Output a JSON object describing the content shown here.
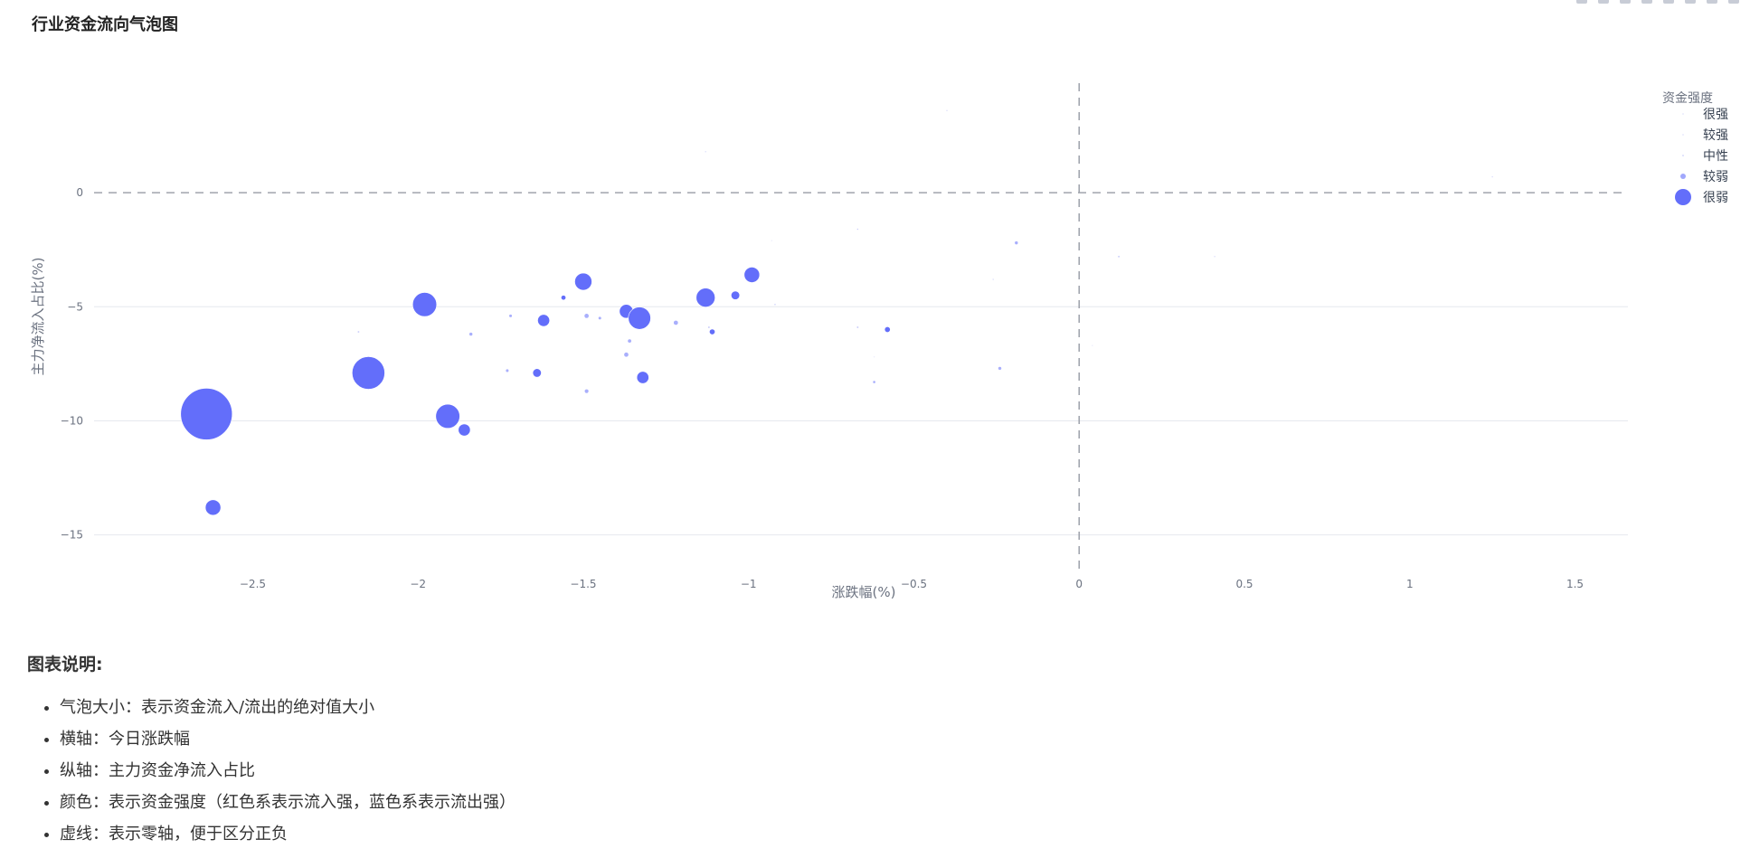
{
  "page": {
    "title": "行业资金流向气泡图"
  },
  "chart_data": {
    "type": "scatter",
    "title": "行业资金流向气泡图",
    "xlabel": "涨跌幅(%)",
    "ylabel": "主力净流入占比(%)",
    "xlim": [
      -2.98,
      1.66
    ],
    "ylim": [
      -16.6,
      4.8
    ],
    "xticks": [
      -2.5,
      -2,
      -1.5,
      -1,
      -0.5,
      0,
      0.5,
      1,
      1.5
    ],
    "xtick_labels": [
      "−2.5",
      "−2",
      "−1.5",
      "−1",
      "−0.5",
      "0",
      "0.5",
      "1",
      "1.5"
    ],
    "yticks": [
      0,
      -5,
      -10,
      -15
    ],
    "ytick_labels": [
      "0",
      "−5",
      "−10",
      "−15"
    ],
    "grid": true,
    "zero_lines": "dashed",
    "legend": {
      "title": "资金强度",
      "position": "top-right",
      "items": [
        "很强",
        "较强",
        "中性",
        "较弱",
        "很弱"
      ]
    },
    "series": [
      {
        "name": "很弱",
        "color": "#636efa",
        "opacity": 1.0,
        "points": [
          {
            "x": -2.64,
            "y": -9.7,
            "size": 30
          },
          {
            "x": -2.15,
            "y": -7.9,
            "size": 19
          },
          {
            "x": -1.98,
            "y": -4.9,
            "size": 14
          },
          {
            "x": -1.91,
            "y": -9.8,
            "size": 14
          },
          {
            "x": -1.86,
            "y": -10.4,
            "size": 7
          },
          {
            "x": -2.62,
            "y": -13.8,
            "size": 9
          },
          {
            "x": -1.62,
            "y": -5.6,
            "size": 7
          },
          {
            "x": -1.64,
            "y": -7.9,
            "size": 5
          },
          {
            "x": -1.5,
            "y": -3.9,
            "size": 10
          },
          {
            "x": -1.37,
            "y": -5.2,
            "size": 8
          },
          {
            "x": -1.33,
            "y": -5.5,
            "size": 13
          },
          {
            "x": -1.32,
            "y": -8.1,
            "size": 7
          },
          {
            "x": -1.13,
            "y": -4.6,
            "size": 11
          },
          {
            "x": -0.99,
            "y": -3.6,
            "size": 9
          },
          {
            "x": -1.04,
            "y": -4.5,
            "size": 5
          },
          {
            "x": -1.11,
            "y": -6.1,
            "size": 3
          },
          {
            "x": -0.58,
            "y": -6.0,
            "size": 3
          },
          {
            "x": -1.56,
            "y": -4.6,
            "size": 2.5
          }
        ]
      },
      {
        "name": "较弱",
        "color": "#636efa",
        "opacity": 0.55,
        "points": [
          {
            "x": -1.49,
            "y": -5.4,
            "size": 2.5
          },
          {
            "x": -1.22,
            "y": -5.7,
            "size": 2.5
          },
          {
            "x": -1.37,
            "y": -7.1,
            "size": 2.5
          },
          {
            "x": -1.49,
            "y": -8.7,
            "size": 2.2
          },
          {
            "x": -1.36,
            "y": -6.5,
            "size": 2
          },
          {
            "x": -1.84,
            "y": -6.2,
            "size": 1.8
          },
          {
            "x": -1.73,
            "y": -7.8,
            "size": 1.6
          },
          {
            "x": -1.72,
            "y": -5.4,
            "size": 1.6
          },
          {
            "x": -1.45,
            "y": -5.5,
            "size": 1.6
          },
          {
            "x": -0.24,
            "y": -7.7,
            "size": 1.8
          },
          {
            "x": -0.19,
            "y": -2.2,
            "size": 1.8
          },
          {
            "x": -0.62,
            "y": -8.3,
            "size": 1.4
          }
        ]
      },
      {
        "name": "中性",
        "color": "#9aa0f5",
        "opacity": 0.5,
        "points": [
          {
            "x": -2.18,
            "y": -6.1,
            "size": 1
          },
          {
            "x": -1.12,
            "y": -5.9,
            "size": 1
          },
          {
            "x": -0.67,
            "y": -5.9,
            "size": 1
          },
          {
            "x": 0.12,
            "y": -2.8,
            "size": 1
          },
          {
            "x": -0.67,
            "y": -1.6,
            "size": 0.8
          },
          {
            "x": -0.92,
            "y": -4.9,
            "size": 0.8
          }
        ]
      },
      {
        "name": "较强",
        "color": "#c6c9f8",
        "opacity": 0.6,
        "points": [
          {
            "x": -1.13,
            "y": 1.8,
            "size": 0.8
          },
          {
            "x": -0.4,
            "y": 3.6,
            "size": 0.8
          },
          {
            "x": 0.41,
            "y": -2.8,
            "size": 0.8
          },
          {
            "x": -0.26,
            "y": -3.8,
            "size": 0.8
          },
          {
            "x": 1.25,
            "y": 0.7,
            "size": 0.8
          }
        ]
      },
      {
        "name": "很强",
        "color": "#d9dbf9",
        "opacity": 0.6,
        "points": [
          {
            "x": -0.93,
            "y": -2.1,
            "size": 0.7
          },
          {
            "x": 0.04,
            "y": -6.7,
            "size": 0.7
          },
          {
            "x": -0.62,
            "y": -7.2,
            "size": 0.7
          }
        ]
      }
    ]
  },
  "notes": {
    "title": "图表说明:",
    "items": [
      "气泡大小：表示资金流入/流出的绝对值大小",
      "横轴：今日涨跌幅",
      "纵轴：主力资金净流入占比",
      "颜色：表示资金强度（红色系表示流入强，蓝色系表示流出强）",
      "虚线：表示零轴，便于区分正负"
    ]
  }
}
